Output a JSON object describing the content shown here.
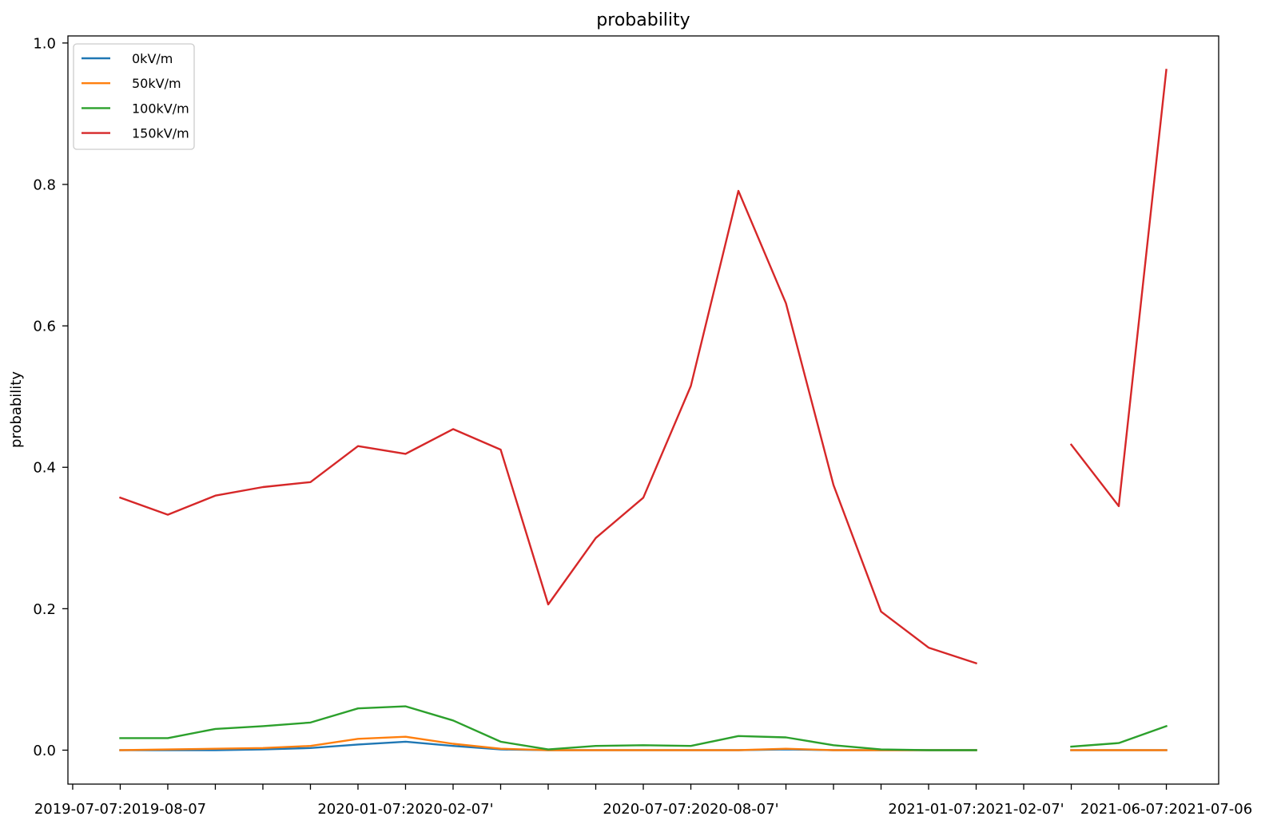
{
  "chart_data": {
    "type": "line",
    "title": "probability",
    "ylabel": "probability",
    "categories": [
      "",
      "2019-07-07:2019-08-07",
      "",
      "",
      "",
      "",
      "",
      "2020-01-07:2020-02-07'",
      "",
      "",
      "",
      "",
      "",
      "2020-07-07:2020-08-07'",
      "",
      "",
      "",
      "",
      "",
      "2021-01-07:2021-02-07'",
      "",
      "",
      "",
      "2021-06-07:2021-07-06"
    ],
    "series": [
      {
        "name": "0kV/m",
        "color": "#1f77b4",
        "values": [
          null,
          0,
          0,
          0,
          0.001,
          0.003,
          0.008,
          0.012,
          0.006,
          0.001,
          0,
          0,
          0,
          0,
          0,
          0.001,
          0,
          0,
          0,
          0,
          null,
          0,
          0,
          0
        ]
      },
      {
        "name": "50kV/m",
        "color": "#ff7f0e",
        "values": [
          null,
          0,
          0.001,
          0.002,
          0.003,
          0.006,
          0.016,
          0.019,
          0.009,
          0.002,
          0,
          0,
          0,
          0,
          0,
          0.002,
          0,
          0,
          0,
          0,
          null,
          0,
          0,
          0
        ]
      },
      {
        "name": "100kV/m",
        "color": "#2ca02c",
        "values": [
          null,
          0.017,
          0.017,
          0.03,
          0.034,
          0.039,
          0.059,
          0.062,
          0.042,
          0.012,
          0.001,
          0.006,
          0.007,
          0.006,
          0.02,
          0.018,
          0.007,
          0.001,
          0,
          0,
          null,
          0.005,
          0.01,
          0.034
        ]
      },
      {
        "name": "150kV/m",
        "color": "#d62728",
        "values": [
          null,
          0.357,
          0.333,
          0.36,
          0.372,
          0.379,
          0.43,
          0.419,
          0.454,
          0.425,
          0.206,
          0.3,
          0.357,
          0.515,
          0.791,
          0.632,
          0.375,
          0.196,
          0.145,
          0.123,
          null,
          0.432,
          0.345,
          0.962
        ]
      }
    ],
    "ylim": [
      -0.048,
      1.01
    ],
    "ytick_labels": [
      "0.0",
      "0.2",
      "0.4",
      "0.6",
      "0.8",
      "1.0"
    ],
    "grid": false,
    "legend_position": "top-left"
  }
}
